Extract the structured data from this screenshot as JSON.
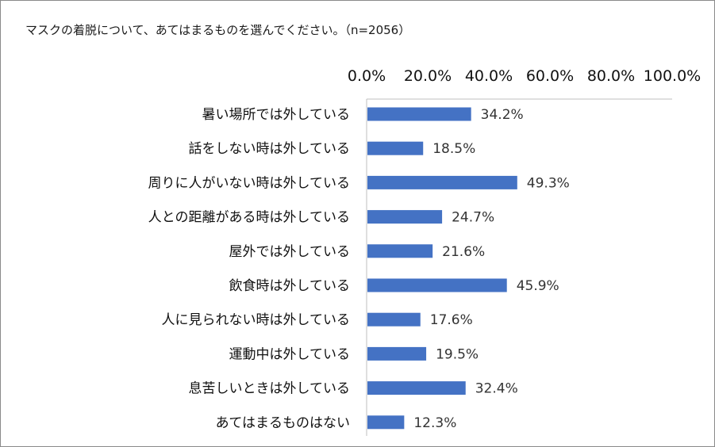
{
  "chart_data": {
    "type": "bar",
    "orientation": "horizontal",
    "title": "マスクの着脱について、あてはまるものを選んでください。（n=2056）",
    "x_axis_position": "top",
    "xlim": [
      0,
      100
    ],
    "x_ticks": [
      "0.0%",
      "20.0%",
      "40.0%",
      "60.0%",
      "80.0%",
      "100.0%"
    ],
    "grid": false,
    "bar_color": "#4472C4",
    "categories": [
      "暑い場所では外している",
      "話をしない時は外している",
      "周りに人がいない時は外している",
      "人との距離がある時は外している",
      "屋外では外している",
      "飲食時は外している",
      "人に見られない時は外している",
      "運動中は外している",
      "息苦しいときは外している",
      "あてはまるものはない"
    ],
    "values": [
      34.2,
      18.5,
      49.3,
      24.7,
      21.6,
      45.9,
      17.6,
      19.5,
      32.4,
      12.3
    ],
    "data_labels": [
      "34.2%",
      "18.5%",
      "49.3%",
      "24.7%",
      "21.6%",
      "45.9%",
      "17.6%",
      "19.5%",
      "32.4%",
      "12.3%"
    ]
  }
}
